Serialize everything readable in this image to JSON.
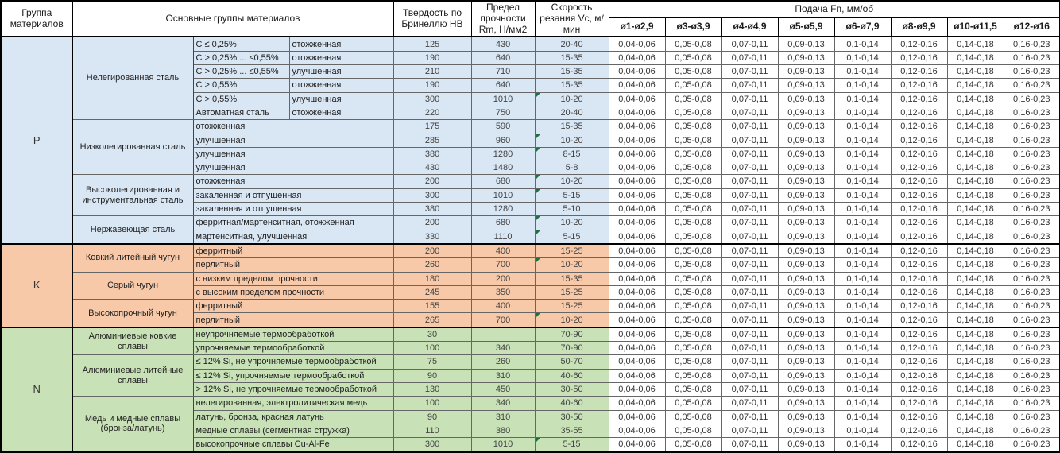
{
  "table": {
    "headers": {
      "group": "Группа материалов",
      "material_groups": "Основные группы материалов",
      "hardness": "Твердость по Бринеллю HB",
      "strength": "Предел прочности Rm, Н/мм2",
      "speed": "Скорость резания Vc, м/мин",
      "feed": "Подача Fn, мм/об",
      "diameters": [
        "ø1-ø2,9",
        "ø3-ø3,9",
        "ø4-ø4,9",
        "ø5-ø5,9",
        "ø6-ø7,9",
        "ø8-ø9,9",
        "ø10-ø11,5",
        "ø12-ø16"
      ]
    },
    "feed_values": [
      "0,04-0,06",
      "0,05-0,08",
      "0,07-0,11",
      "0,09-0,13",
      "0,1-0,14",
      "0,12-0,16",
      "0,14-0,18",
      "0,16-0,23"
    ],
    "error_indicator_color": "#1e7145",
    "sections": [
      {
        "group": "P",
        "color": "#d9e6f4",
        "material_groups": [
          {
            "name": "Нелегированная сталь",
            "rows": [
              {
                "cells": [
                  "C ≤ 0,25%",
                  "отожженная"
                ],
                "hb": "125",
                "rm": "430",
                "vc": "20-40",
                "marker": false
              },
              {
                "cells": [
                  "C > 0,25% ... ≤0,55%",
                  "отожженная"
                ],
                "hb": "190",
                "rm": "640",
                "vc": "15-35",
                "marker": false
              },
              {
                "cells": [
                  "C > 0,25% ... ≤0,55%",
                  "улучшенная"
                ],
                "hb": "210",
                "rm": "710",
                "vc": "15-35",
                "marker": false
              },
              {
                "cells": [
                  "C > 0,55%",
                  "отожженная"
                ],
                "hb": "190",
                "rm": "640",
                "vc": "15-35",
                "marker": false
              },
              {
                "cells": [
                  "C > 0,55%",
                  "улучшенная"
                ],
                "hb": "300",
                "rm": "1010",
                "vc": "10-20",
                "marker": true
              },
              {
                "cells": [
                  "Автоматная сталь",
                  "отожженная"
                ],
                "hb": "220",
                "rm": "750",
                "vc": "20-40",
                "marker": false
              }
            ]
          },
          {
            "name": "Низколегированная сталь",
            "rows": [
              {
                "cells": [
                  "отожженная"
                ],
                "hb": "175",
                "rm": "590",
                "vc": "15-35",
                "marker": false
              },
              {
                "cells": [
                  "улучшенная"
                ],
                "hb": "285",
                "rm": "960",
                "vc": "10-20",
                "marker": true
              },
              {
                "cells": [
                  "улучшенная"
                ],
                "hb": "380",
                "rm": "1280",
                "vc": "8-15",
                "marker": true
              },
              {
                "cells": [
                  "улучшенная"
                ],
                "hb": "430",
                "rm": "1480",
                "vc": "5-8",
                "marker": false
              }
            ]
          },
          {
            "name": "Высоколегированная и инструментальная сталь",
            "rows": [
              {
                "cells": [
                  "отожженная"
                ],
                "hb": "200",
                "rm": "680",
                "vc": "10-20",
                "marker": true
              },
              {
                "cells": [
                  "закаленная и отпущенная"
                ],
                "hb": "300",
                "rm": "1010",
                "vc": "5-15",
                "marker": true
              },
              {
                "cells": [
                  "закаленная и отпущенная"
                ],
                "hb": "380",
                "rm": "1280",
                "vc": "5-10",
                "marker": false
              }
            ]
          },
          {
            "name": "Нержавеющая сталь",
            "rows": [
              {
                "cells": [
                  "ферритная/мартенситная, отожженная"
                ],
                "hb": "200",
                "rm": "680",
                "vc": "10-20",
                "marker": true
              },
              {
                "cells": [
                  "мартенситная, улучшенная"
                ],
                "hb": "330",
                "rm": "1110",
                "vc": "5-15",
                "marker": true
              }
            ]
          }
        ]
      },
      {
        "group": "K",
        "color": "#f7c9a9",
        "material_groups": [
          {
            "name": "Ковкий литейный чугун",
            "rows": [
              {
                "cells": [
                  "ферритный"
                ],
                "hb": "200",
                "rm": "400",
                "vc": "15-25",
                "marker": false
              },
              {
                "cells": [
                  "перлитный"
                ],
                "hb": "260",
                "rm": "700",
                "vc": "10-20",
                "marker": true
              }
            ]
          },
          {
            "name": "Серый чугун",
            "rows": [
              {
                "cells": [
                  "с низким пределом прочности"
                ],
                "hb": "180",
                "rm": "200",
                "vc": "15-35",
                "marker": false
              },
              {
                "cells": [
                  "с высоким пределом прочности"
                ],
                "hb": "245",
                "rm": "350",
                "vc": "15-25",
                "marker": false
              }
            ]
          },
          {
            "name": "Высокопрочный чугун",
            "rows": [
              {
                "cells": [
                  "ферритный"
                ],
                "hb": "155",
                "rm": "400",
                "vc": "15-25",
                "marker": false
              },
              {
                "cells": [
                  "перлитный"
                ],
                "hb": "265",
                "rm": "700",
                "vc": "10-20",
                "marker": true
              }
            ]
          }
        ]
      },
      {
        "group": "N",
        "color": "#c8e1b6",
        "material_groups": [
          {
            "name": "Алюминиевые ковкие сплавы",
            "rows": [
              {
                "cells": [
                  "неупрочняемые термообработкой"
                ],
                "hb": "30",
                "rm": "",
                "vc": "70-90",
                "marker": false
              },
              {
                "cells": [
                  "упрочняемые термообработкой"
                ],
                "hb": "100",
                "rm": "340",
                "vc": "70-90",
                "marker": false
              }
            ]
          },
          {
            "name": "Алюминиевые литейные сплавы",
            "rows": [
              {
                "cells": [
                  "≤ 12% Si, не упрочняемые термообработкой"
                ],
                "hb": "75",
                "rm": "260",
                "vc": "50-70",
                "marker": false
              },
              {
                "cells": [
                  "≤ 12% Si, упрочняемые термообработкой"
                ],
                "hb": "90",
                "rm": "310",
                "vc": "40-60",
                "marker": false
              },
              {
                "cells": [
                  "> 12% Si, не упрочняемые термообработкой"
                ],
                "hb": "130",
                "rm": "450",
                "vc": "30-50",
                "marker": false
              }
            ]
          },
          {
            "name": "Медь и медные сплавы (бронза/латунь)",
            "rows": [
              {
                "cells": [
                  "нелегированная, электролитическая медь"
                ],
                "hb": "100",
                "rm": "340",
                "vc": "40-60",
                "marker": false
              },
              {
                "cells": [
                  "латунь, бронза, красная латунь"
                ],
                "hb": "90",
                "rm": "310",
                "vc": "30-50",
                "marker": false
              },
              {
                "cells": [
                  "медные сплавы (сегментная стружка)"
                ],
                "hb": "110",
                "rm": "380",
                "vc": "35-55",
                "marker": false
              },
              {
                "cells": [
                  "высокопрочные сплавы Cu-Al-Fe"
                ],
                "hb": "300",
                "rm": "1010",
                "vc": "5-15",
                "marker": true
              }
            ]
          }
        ]
      }
    ]
  }
}
